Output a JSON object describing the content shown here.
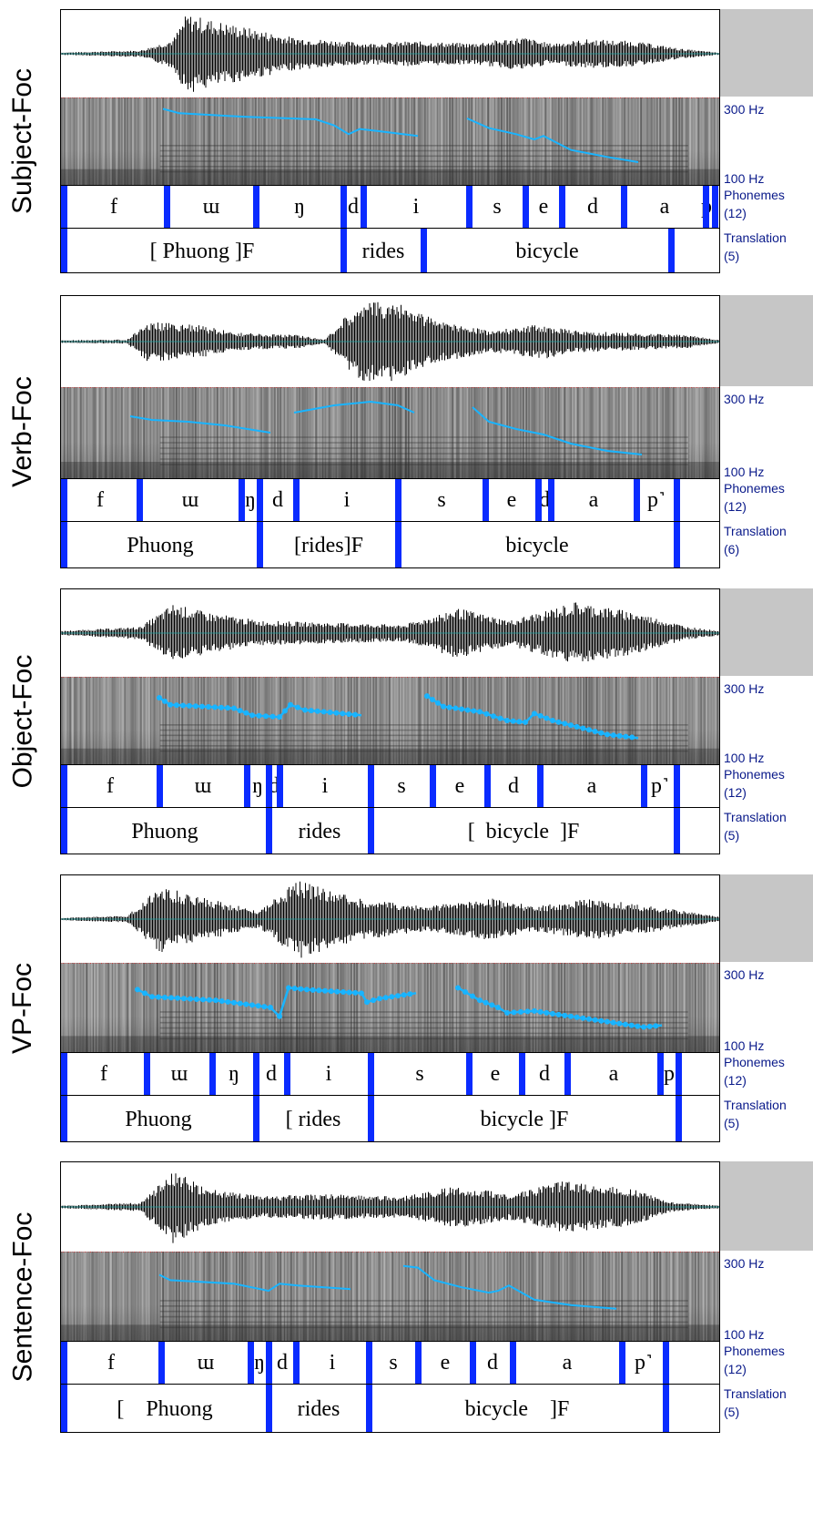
{
  "freq_labels": {
    "high": "300 Hz",
    "low": "100 Hz"
  },
  "tier_names": {
    "phonemes": "Phonemes",
    "translation": "Translation"
  },
  "rows": [
    {
      "label": "Subject-Foc",
      "phoneme_count": "(12)",
      "translation_count": "(5)",
      "phonemes": [
        "f",
        "ɯ",
        "ŋ",
        "d",
        "i",
        "s",
        "e",
        "d",
        "a",
        "p˺"
      ],
      "words": [
        "[ Phuong ]F",
        "rides",
        "bicycle"
      ]
    },
    {
      "label": "Verb-Foc",
      "phoneme_count": "(12)",
      "translation_count": "(6)",
      "phonemes": [
        "f",
        "ɯ",
        "ŋ",
        "d",
        "i",
        "s",
        "e",
        "d",
        "a",
        "p˺"
      ],
      "words": [
        "Phuong",
        "[rides]F",
        "bicycle"
      ]
    },
    {
      "label": "Object-Foc",
      "phoneme_count": "(12)",
      "translation_count": "(5)",
      "phonemes": [
        "f",
        "ɯ",
        "ŋ",
        "d",
        "i",
        "s",
        "e",
        "d",
        "a",
        "p˺"
      ],
      "words": [
        "Phuong",
        "rides",
        "[  bicycle  ]F"
      ]
    },
    {
      "label": "VP-Foc",
      "phoneme_count": "(12)",
      "translation_count": "(5)",
      "phonemes": [
        "f",
        "ɯ",
        "ŋ",
        "d",
        "i",
        "s",
        "e",
        "d",
        "a",
        "p"
      ],
      "words": [
        "Phuong",
        "[ rides",
        "bicycle ]F"
      ]
    },
    {
      "label": "Sentence-Foc",
      "phoneme_count": "(12)",
      "translation_count": "(5)",
      "phonemes": [
        "f",
        "ɯ",
        "ŋ",
        "d",
        "i",
        "s",
        "e",
        "d",
        "a",
        "p˺"
      ],
      "words": [
        "[    Phuong",
        "rides",
        "bicycle    ]F"
      ]
    }
  ],
  "colors": {
    "boundary": "#0a2bff",
    "pitch": "#19b4ff",
    "tier_label": "#0a1a8a"
  }
}
